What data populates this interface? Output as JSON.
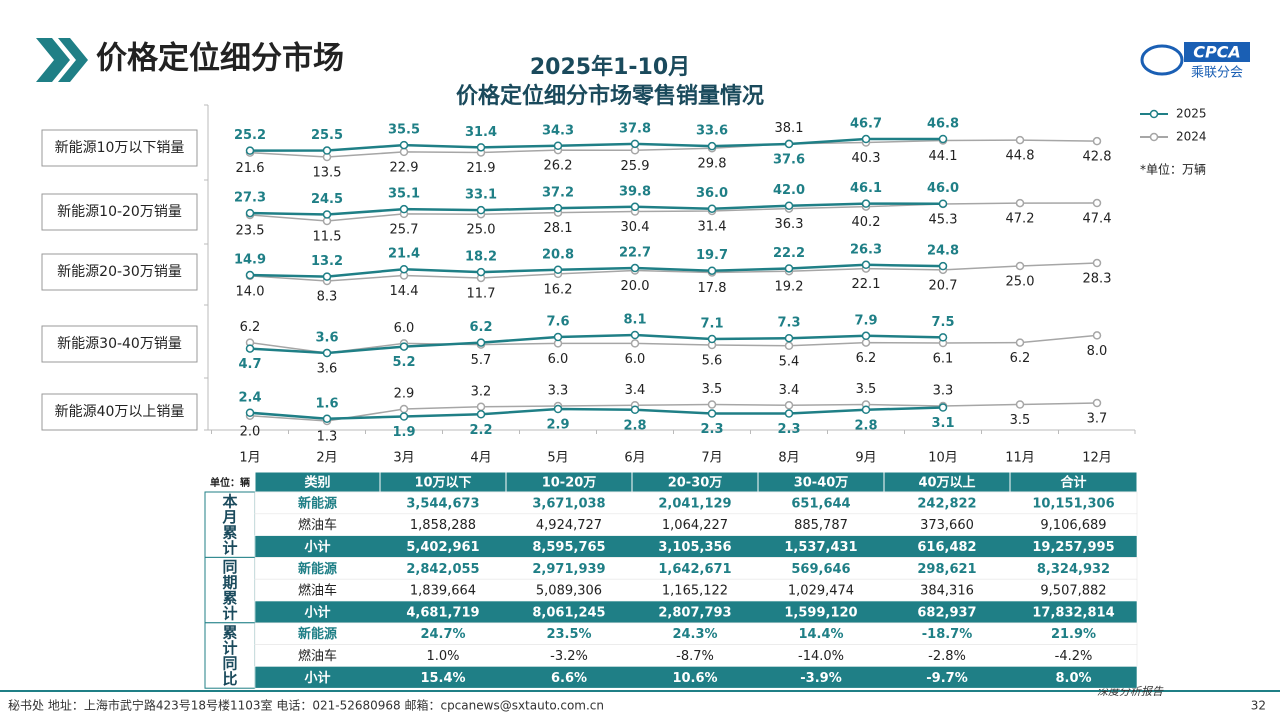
{
  "header": {
    "title": "价格定位细分市场",
    "subtitle_1": "2025年1-10月",
    "subtitle_2": "价格定位细分市场零售销量情况",
    "logo": "CPCA",
    "logo_sub": "乘联分会",
    "unit": "*单位：万辆"
  },
  "chart_data": [
    {
      "type": "line",
      "title": "新能源10万以下销量",
      "series": [
        {
          "name": "2025",
          "color": "#1f7f86",
          "values": [
            25.2,
            25.5,
            35.5,
            31.4,
            34.3,
            37.8,
            33.6,
            37.6,
            46.7,
            46.8,
            null,
            null
          ],
          "value_labels": [
            "25.2",
            "25.5",
            "35.5",
            "31.4",
            "34.3",
            "37.8",
            "33.6",
            "37.6",
            "46.7",
            "46.8",
            null,
            null
          ]
        },
        {
          "name": "2024",
          "color": "#a6a6a6",
          "values": [
            21.6,
            13.5,
            22.9,
            21.9,
            26.2,
            25.9,
            29.8,
            38.1,
            40.3,
            44.1,
            44.8,
            42.8
          ],
          "value_labels": [
            "21.6",
            "13.5",
            "22.9",
            "21.9",
            "26.2",
            "25.9",
            "29.8",
            "38.1",
            "40.3",
            "44.1",
            "44.8",
            "42.8"
          ]
        }
      ]
    },
    {
      "type": "line",
      "title": "新能源10-20万销量",
      "series": [
        {
          "name": "2025",
          "color": "#1f7f86",
          "values": [
            27.3,
            24.5,
            35.1,
            33.1,
            37.2,
            39.8,
            36.0,
            42.0,
            46.1,
            46.0,
            null,
            null
          ],
          "value_labels": [
            "27.3",
            "24.5",
            "35.1",
            "33.1",
            "37.2",
            "39.8",
            "36.0",
            "42.0",
            "46.1",
            "46.0",
            null,
            null
          ]
        },
        {
          "name": "2024",
          "color": "#a6a6a6",
          "values": [
            23.5,
            11.5,
            25.7,
            25.0,
            28.1,
            30.4,
            31.4,
            36.3,
            40.2,
            45.3,
            47.2,
            47.4
          ],
          "value_labels": [
            "23.5",
            "11.5",
            "25.7",
            "25.0",
            "28.1",
            "30.4",
            "31.4",
            "36.3",
            "40.2",
            "45.3",
            "47.2",
            "47.4"
          ]
        }
      ]
    },
    {
      "type": "line",
      "title": "新能源20-30万销量",
      "series": [
        {
          "name": "2025",
          "color": "#1f7f86",
          "values": [
            14.9,
            13.2,
            21.4,
            18.2,
            20.8,
            22.7,
            19.7,
            22.2,
            26.3,
            24.8,
            null,
            null
          ],
          "value_labels": [
            "14.9",
            "13.2",
            "21.4",
            "18.2",
            "20.8",
            "22.7",
            "19.7",
            "22.2",
            "26.3",
            "24.8",
            null,
            null
          ]
        },
        {
          "name": "2024",
          "color": "#a6a6a6",
          "values": [
            14.0,
            8.3,
            14.4,
            11.7,
            16.2,
            20.0,
            17.8,
            19.2,
            22.1,
            20.7,
            25.0,
            28.3
          ],
          "value_labels": [
            "14.0",
            "8.3",
            "14.4",
            "11.7",
            "16.2",
            "20.0",
            "17.8",
            "19.2",
            "22.1",
            "20.7",
            "25.0",
            "28.3"
          ]
        }
      ]
    },
    {
      "type": "line",
      "title": "新能源30-40万销量",
      "series": [
        {
          "name": "2025",
          "color": "#1f7f86",
          "values": [
            4.7,
            3.6,
            5.2,
            6.2,
            7.6,
            8.1,
            7.1,
            7.3,
            7.9,
            7.5,
            null,
            null
          ],
          "value_labels": [
            "4.7",
            "3.6",
            "5.2",
            "6.2",
            "7.6",
            "8.1",
            "7.1",
            "7.3",
            "7.9",
            "7.5",
            null,
            null
          ]
        },
        {
          "name": "2024",
          "color": "#a6a6a6",
          "values": [
            6.2,
            3.6,
            6.0,
            5.7,
            6.0,
            6.0,
            5.6,
            5.4,
            6.2,
            6.1,
            6.2,
            8.0
          ],
          "value_labels": [
            "6.2",
            "3.6",
            "6.0",
            "5.7",
            "6.0",
            "6.0",
            "5.6",
            "5.4",
            "6.2",
            "6.1",
            "6.2",
            "8.0"
          ]
        }
      ]
    },
    {
      "type": "line",
      "title": "新能源40万以上销量",
      "categories": [
        "1月",
        "2月",
        "3月",
        "4月",
        "5月",
        "6月",
        "7月",
        "8月",
        "9月",
        "10月",
        "11月",
        "12月"
      ],
      "series": [
        {
          "name": "2025",
          "color": "#1f7f86",
          "values": [
            2.4,
            1.6,
            1.9,
            2.2,
            2.9,
            2.8,
            2.3,
            2.3,
            2.8,
            3.1,
            null,
            null
          ],
          "value_labels": [
            "2.4",
            "1.6",
            "1.9",
            "2.2",
            "2.9",
            "2.8",
            "2.3",
            "2.3",
            "2.8",
            "3.1",
            null,
            null
          ]
        },
        {
          "name": "2024",
          "color": "#a6a6a6",
          "values": [
            2.0,
            1.3,
            2.9,
            3.2,
            3.3,
            3.4,
            3.5,
            3.4,
            3.5,
            3.3,
            3.5,
            3.7
          ],
          "value_labels": [
            "2.0",
            "1.3",
            "2.9",
            "3.2",
            "3.3",
            "3.4",
            "3.5",
            "3.4",
            "3.5",
            "3.3",
            "3.5",
            "3.7"
          ]
        }
      ]
    }
  ],
  "table": {
    "header": [
      "单位：辆",
      "类别",
      "10万以下",
      "10-20万",
      "20-30万",
      "30-40万",
      "40万以上",
      "合计"
    ],
    "groups": [
      {
        "label": "本月累计",
        "rows": [
          [
            "新能源",
            "3,544,673",
            "3,671,038",
            "2,041,129",
            "651,644",
            "242,822",
            "10,151,306"
          ],
          [
            "燃油车",
            "1,858,288",
            "4,924,727",
            "1,064,227",
            "885,787",
            "373,660",
            "9,106,689"
          ],
          [
            "小计",
            "5,402,961",
            "8,595,765",
            "3,105,356",
            "1,537,431",
            "616,482",
            "19,257,995"
          ]
        ]
      },
      {
        "label": "同期累计",
        "rows": [
          [
            "新能源",
            "2,842,055",
            "2,971,939",
            "1,642,671",
            "569,646",
            "298,621",
            "8,324,932"
          ],
          [
            "燃油车",
            "1,839,664",
            "5,089,306",
            "1,165,122",
            "1,029,474",
            "384,316",
            "9,507,882"
          ],
          [
            "小计",
            "4,681,719",
            "8,061,245",
            "2,807,793",
            "1,599,120",
            "682,937",
            "17,832,814"
          ]
        ]
      },
      {
        "label": "累计同比",
        "rows": [
          [
            "新能源",
            "24.7%",
            "23.5%",
            "24.3%",
            "14.4%",
            "-18.7%",
            "21.9%"
          ],
          [
            "燃油车",
            "1.0%",
            "-3.2%",
            "-8.7%",
            "-14.0%",
            "-2.8%",
            "-4.2%"
          ],
          [
            "小计",
            "15.4%",
            "6.6%",
            "10.6%",
            "-3.9%",
            "-9.7%",
            "8.0%"
          ]
        ]
      }
    ]
  },
  "footer": {
    "contact": "秘书处   地址：上海市武宁路423号18号楼1103室   电话：021-52680968   邮箱：cpcanews@sxtauto.com.cn",
    "report": "深度分析报告",
    "page": "32"
  }
}
